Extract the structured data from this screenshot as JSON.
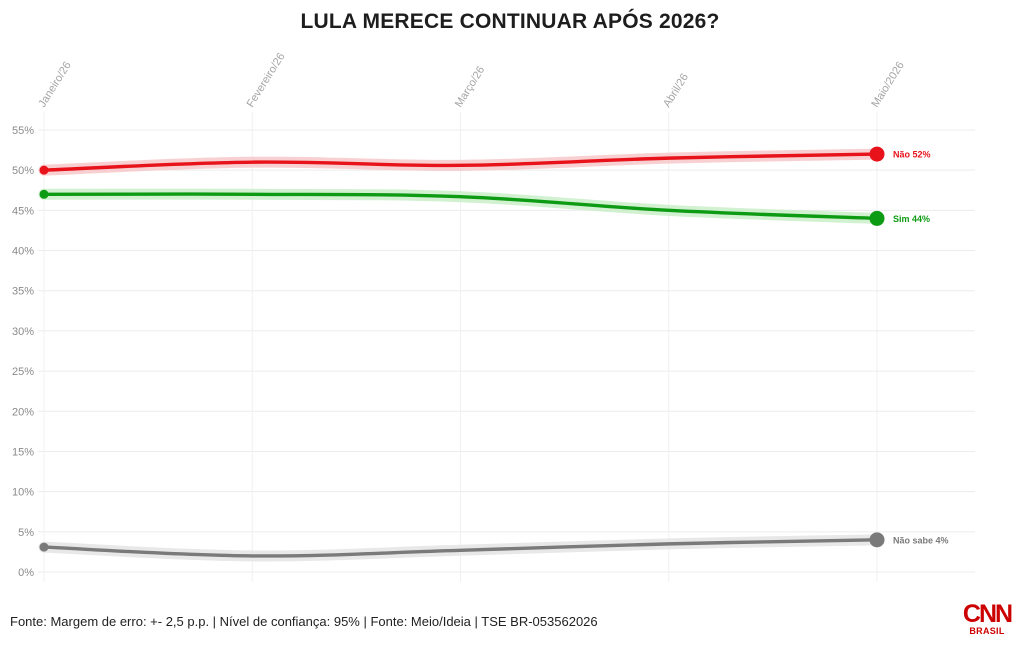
{
  "chart_data": {
    "type": "line",
    "title": "LULA MERECE CONTINUAR APÓS 2026?",
    "xlabel": "",
    "ylabel": "",
    "categories": [
      "Janeiro/26",
      "Fevereiro/26",
      "Março/26",
      "Abril/26",
      "Maio/2026"
    ],
    "y_ticks": [
      "0%",
      "5%",
      "10%",
      "15%",
      "20%",
      "25%",
      "30%",
      "35%",
      "40%",
      "45%",
      "50%",
      "55%"
    ],
    "ylim": [
      0,
      55
    ],
    "grid": true,
    "legend": "end-labels",
    "series": [
      {
        "key": "nao",
        "end_label": "Não 52%",
        "color": "#e8121a",
        "band_color": "#f7c8ca",
        "values": [
          50,
          51,
          50.6,
          51.5,
          52
        ]
      },
      {
        "key": "sim",
        "end_label": "Sim 44%",
        "color": "#0e9b14",
        "band_color": "#c9eec8",
        "values": [
          47,
          47,
          46.7,
          45,
          44
        ]
      },
      {
        "key": "nao_sabe",
        "end_label": "Não sabe 4%",
        "color": "#7a7a7a",
        "band_color": "#e4e4e4",
        "values": [
          3.1,
          2,
          2.7,
          3.5,
          4
        ]
      }
    ]
  },
  "footer": {
    "source": "Fonte: Margem de erro: +- 2,5 p.p. | Nível de confiança: 95% | Fonte: Meio/Ideia | TSE BR-053562026"
  },
  "brand": {
    "logo_text": "CNN",
    "logo_sub": "BRASIL"
  }
}
